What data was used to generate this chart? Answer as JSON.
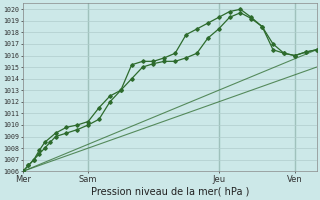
{
  "xlabel": "Pression niveau de la mer( hPa )",
  "bg_color": "#cce8e8",
  "grid_color": "#b0cccc",
  "line_color": "#2d6b2d",
  "line_color2": "#3a7a3a",
  "ylim": [
    1006,
    1020.5
  ],
  "yticks": [
    1006,
    1007,
    1008,
    1009,
    1010,
    1011,
    1012,
    1013,
    1014,
    1015,
    1016,
    1017,
    1018,
    1019,
    1020
  ],
  "xlim": [
    0,
    27
  ],
  "day_labels": [
    "Mer",
    "Sam",
    "Jeu",
    "Ven"
  ],
  "day_positions": [
    0,
    6,
    18,
    25
  ],
  "vline_positions": [
    6,
    18,
    25
  ],
  "line1_x": [
    0,
    0.5,
    1,
    1.5,
    2,
    2.5,
    3,
    4,
    5,
    6,
    7,
    8,
    9,
    10,
    11,
    12,
    13,
    14,
    15,
    16,
    17,
    18,
    19,
    20,
    21,
    22,
    23,
    24,
    25,
    26,
    27
  ],
  "line1_y": [
    1006,
    1006.5,
    1007,
    1007.5,
    1008,
    1008.5,
    1009,
    1009.3,
    1009.6,
    1010,
    1010.5,
    1012,
    1013,
    1014,
    1015,
    1015.3,
    1015.5,
    1015.5,
    1015.8,
    1016.2,
    1017.5,
    1018.3,
    1019.3,
    1019.7,
    1019.2,
    1018.5,
    1017.0,
    1016.2,
    1016.0,
    1016.3,
    1016.5
  ],
  "line2_x": [
    0,
    0.5,
    1,
    1.5,
    2,
    3,
    4,
    5,
    6,
    7,
    8,
    9,
    10,
    11,
    12,
    13,
    14,
    15,
    16,
    17,
    18,
    19,
    20,
    21,
    22,
    23,
    24,
    25,
    26,
    27
  ],
  "line2_y": [
    1006,
    1006.5,
    1007,
    1007.8,
    1008.5,
    1009.3,
    1009.8,
    1010,
    1010.3,
    1011.5,
    1012.5,
    1013,
    1015.2,
    1015.5,
    1015.5,
    1015.8,
    1016.2,
    1017.8,
    1018.3,
    1018.8,
    1019.3,
    1019.8,
    1020.0,
    1019.3,
    1018.5,
    1016.5,
    1016.2,
    1016.0,
    1016.3,
    1016.5
  ],
  "line3_x": [
    0,
    27
  ],
  "line3_y": [
    1006,
    1016.5
  ],
  "line4_x": [
    0,
    27
  ],
  "line4_y": [
    1006,
    1015.0
  ]
}
